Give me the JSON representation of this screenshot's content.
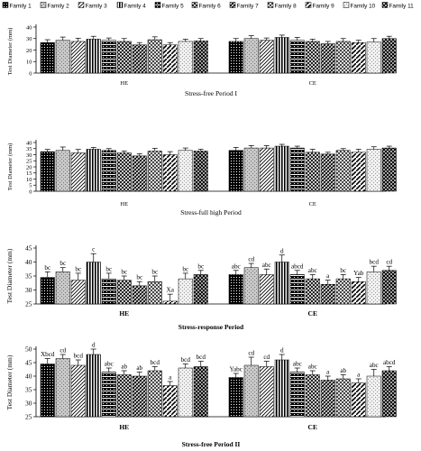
{
  "legend": [
    "Family 1",
    "Family 2",
    "Family 3",
    "Family 4",
    "Family 5",
    "Family 6",
    "Family 7",
    "Family 8",
    "Family 9",
    "Family 10",
    "Family 11"
  ],
  "chart_data": [
    {
      "type": "bar",
      "title": "Stress-free Period I",
      "ylabel": "Test Diameter (mm)",
      "categories": [
        "HE",
        "CE"
      ],
      "ylim": [
        0,
        40
      ],
      "yticks": [
        0,
        10,
        20,
        30,
        40
      ],
      "series": [
        {
          "name": "Family 1",
          "values": [
            26.5,
            27.5
          ],
          "errors": [
            2.5,
            2.5
          ]
        },
        {
          "name": "Family 2",
          "values": [
            28.5,
            30.0
          ],
          "errors": [
            2.8,
            2.5
          ]
        },
        {
          "name": "Family 3",
          "values": [
            27.5,
            28.5
          ],
          "errors": [
            2.8,
            2.0
          ]
        },
        {
          "name": "Family 4",
          "values": [
            29.5,
            31.0
          ],
          "errors": [
            2.5,
            2.0
          ]
        },
        {
          "name": "Family 5",
          "values": [
            28.5,
            28.5
          ],
          "errors": [
            2.0,
            2.5
          ]
        },
        {
          "name": "Family 6",
          "values": [
            27.5,
            27.5
          ],
          "errors": [
            2.5,
            2.0
          ]
        },
        {
          "name": "Family 7",
          "values": [
            24.5,
            25.5
          ],
          "errors": [
            2.0,
            2.0
          ]
        },
        {
          "name": "Family 8",
          "values": [
            29.0,
            27.5
          ],
          "errors": [
            2.5,
            2.5
          ]
        },
        {
          "name": "Family 9",
          "values": [
            24.5,
            26.5
          ],
          "errors": [
            2.0,
            2.0
          ]
        },
        {
          "name": "Family 10",
          "values": [
            27.5,
            27.0
          ],
          "errors": [
            2.0,
            3.0
          ]
        },
        {
          "name": "Family 11",
          "values": [
            28.0,
            30.0
          ],
          "errors": [
            2.0,
            2.0
          ]
        }
      ],
      "annotations": [
        [],
        []
      ]
    },
    {
      "type": "bar",
      "title": "Stress-full high Period",
      "ylabel": "Test Diameter (mm)",
      "categories": [
        "HE",
        "CE"
      ],
      "ylim": [
        0,
        40
      ],
      "yticks": [
        0,
        5,
        10,
        15,
        20,
        25,
        30,
        35,
        40
      ],
      "series": [
        {
          "name": "Family 1",
          "values": [
            32.5,
            33.5
          ],
          "errors": [
            1.8,
            2.5
          ]
        },
        {
          "name": "Family 2",
          "values": [
            33.5,
            35.5
          ],
          "errors": [
            2.8,
            2.0
          ]
        },
        {
          "name": "Family 3",
          "values": [
            31.5,
            35.5
          ],
          "errors": [
            2.8,
            2.0
          ]
        },
        {
          "name": "Family 4",
          "values": [
            34.5,
            37.0
          ],
          "errors": [
            1.5,
            1.5
          ]
        },
        {
          "name": "Family 5",
          "values": [
            33.5,
            35.5
          ],
          "errors": [
            1.5,
            1.5
          ]
        },
        {
          "name": "Family 6",
          "values": [
            31.5,
            32.0
          ],
          "errors": [
            1.5,
            2.5
          ]
        },
        {
          "name": "Family 7",
          "values": [
            29.0,
            30.5
          ],
          "errors": [
            1.8,
            1.5
          ]
        },
        {
          "name": "Family 8",
          "values": [
            33.0,
            33.5
          ],
          "errors": [
            2.3,
            1.5
          ]
        },
        {
          "name": "Family 9",
          "values": [
            30.0,
            32.0
          ],
          "errors": [
            2.5,
            2.5
          ]
        },
        {
          "name": "Family 10",
          "values": [
            33.5,
            34.5
          ],
          "errors": [
            2.0,
            2.0
          ]
        },
        {
          "name": "Family 11",
          "values": [
            33.0,
            35.5
          ],
          "errors": [
            1.5,
            1.5
          ]
        }
      ],
      "annotations": [
        [],
        []
      ]
    },
    {
      "type": "bar",
      "title": "Stress-response Period",
      "ylabel": "Test Diameter (mm)",
      "categories": [
        "HE",
        "CE"
      ],
      "ylim": [
        25,
        45
      ],
      "yticks": [
        25,
        30,
        35,
        40,
        45
      ],
      "series": [
        {
          "name": "Family 1",
          "values": [
            34.5,
            35.5
          ],
          "errors": [
            2.0,
            1.5
          ]
        },
        {
          "name": "Family 2",
          "values": [
            36.5,
            38.0
          ],
          "errors": [
            1.5,
            1.5
          ]
        },
        {
          "name": "Family 3",
          "values": [
            33.5,
            35.5
          ],
          "errors": [
            2.5,
            2.0
          ]
        },
        {
          "name": "Family 4",
          "values": [
            40.0,
            40.0
          ],
          "errors": [
            3.0,
            2.5
          ]
        },
        {
          "name": "Family 5",
          "values": [
            34.0,
            35.5
          ],
          "errors": [
            2.0,
            1.5
          ]
        },
        {
          "name": "Family 6",
          "values": [
            33.5,
            34.0
          ],
          "errors": [
            1.5,
            1.5
          ]
        },
        {
          "name": "Family 7",
          "values": [
            31.5,
            32.0
          ],
          "errors": [
            1.5,
            1.5
          ]
        },
        {
          "name": "Family 8",
          "values": [
            33.0,
            34.0
          ],
          "errors": [
            2.0,
            1.5
          ]
        },
        {
          "name": "Family 9",
          "values": [
            26.0,
            33.0
          ],
          "errors": [
            2.5,
            1.5
          ]
        },
        {
          "name": "Family 10",
          "values": [
            34.0,
            36.5
          ],
          "errors": [
            2.0,
            2.0
          ]
        },
        {
          "name": "Family 11",
          "values": [
            35.5,
            37.0
          ],
          "errors": [
            1.5,
            1.5
          ]
        }
      ],
      "annotations": [
        [
          "bc",
          "bc",
          "bc",
          "c",
          "bc",
          "bc",
          "bc",
          "bc",
          "Xa",
          "bc",
          "bc"
        ],
        [
          "abc",
          "cd",
          "abc",
          "d",
          "abcd",
          "abc",
          "a",
          "bc",
          "Yab",
          "bcd",
          "cd"
        ]
      ]
    },
    {
      "type": "bar",
      "title": "Stress-free Period II",
      "ylabel": "Test Diameter (mm)",
      "categories": [
        "HE",
        "CE"
      ],
      "ylim": [
        25,
        50
      ],
      "yticks": [
        25,
        30,
        35,
        40,
        45,
        50
      ],
      "series": [
        {
          "name": "Family 1",
          "values": [
            44.5,
            39.5
          ],
          "errors": [
            2.0,
            1.5
          ]
        },
        {
          "name": "Family 2",
          "values": [
            46.5,
            44.0
          ],
          "errors": [
            1.5,
            3.0
          ]
        },
        {
          "name": "Family 3",
          "values": [
            44.0,
            43.5
          ],
          "errors": [
            2.0,
            2.0
          ]
        },
        {
          "name": "Family 4",
          "values": [
            48.0,
            46.0
          ],
          "errors": [
            2.0,
            2.0
          ]
        },
        {
          "name": "Family 5",
          "values": [
            41.5,
            41.5
          ],
          "errors": [
            1.5,
            1.5
          ]
        },
        {
          "name": "Family 6",
          "values": [
            40.5,
            40.5
          ],
          "errors": [
            1.5,
            1.5
          ]
        },
        {
          "name": "Family 7",
          "values": [
            40.0,
            38.5
          ],
          "errors": [
            1.5,
            1.5
          ]
        },
        {
          "name": "Family 8",
          "values": [
            42.0,
            39.0
          ],
          "errors": [
            1.5,
            1.5
          ]
        },
        {
          "name": "Family 9",
          "values": [
            36.5,
            37.5
          ],
          "errors": [
            1.5,
            1.5
          ]
        },
        {
          "name": "Family 10",
          "values": [
            43.0,
            40.0
          ],
          "errors": [
            1.5,
            2.5
          ]
        },
        {
          "name": "Family 11",
          "values": [
            43.5,
            42.0
          ],
          "errors": [
            2.0,
            1.5
          ]
        }
      ],
      "annotations": [
        [
          "Xbcd",
          "cd",
          "bcd",
          "d",
          "abc",
          "ab",
          "ab",
          "bcd",
          "a",
          "bcd",
          "bcd"
        ],
        [
          "Yabc",
          "cd",
          "cd",
          "d",
          "abc",
          "abc",
          "a",
          "ab",
          "a",
          "abc",
          "abcd"
        ]
      ]
    }
  ]
}
